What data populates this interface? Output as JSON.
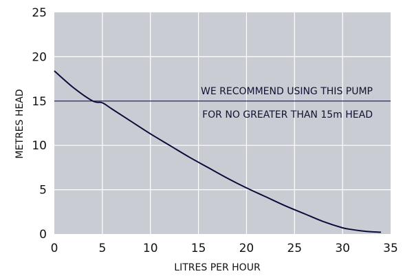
{
  "chart_data": {
    "type": "line",
    "title": "",
    "xlabel": "LITRES PER HOUR",
    "ylabel": "METRES  HEAD",
    "xlim": [
      0,
      35
    ],
    "ylim": [
      0,
      25
    ],
    "x_ticks": [
      0,
      5,
      10,
      15,
      20,
      25,
      30,
      35
    ],
    "y_ticks": [
      0,
      5,
      10,
      15,
      20,
      25
    ],
    "grid": true,
    "background_color": "#c9ccd3",
    "line_color": "#0b0b3a",
    "series": [
      {
        "x": [
          0,
          2,
          4,
          5,
          6,
          8,
          10,
          12,
          14,
          16,
          18,
          20,
          22,
          24,
          26,
          28,
          30,
          31,
          32,
          33,
          34
        ],
        "y": [
          18.4,
          16.5,
          15.0,
          14.8,
          14.1,
          12.7,
          11.3,
          10.0,
          8.7,
          7.5,
          6.3,
          5.2,
          4.2,
          3.2,
          2.3,
          1.4,
          0.7,
          0.5,
          0.35,
          0.25,
          0.2
        ]
      }
    ],
    "reference_line": {
      "y": 15,
      "annotation_lines": [
        "WE RECOMMEND USING THIS PUMP",
        "FOR NO GREATER THAN 15m HEAD"
      ]
    }
  }
}
